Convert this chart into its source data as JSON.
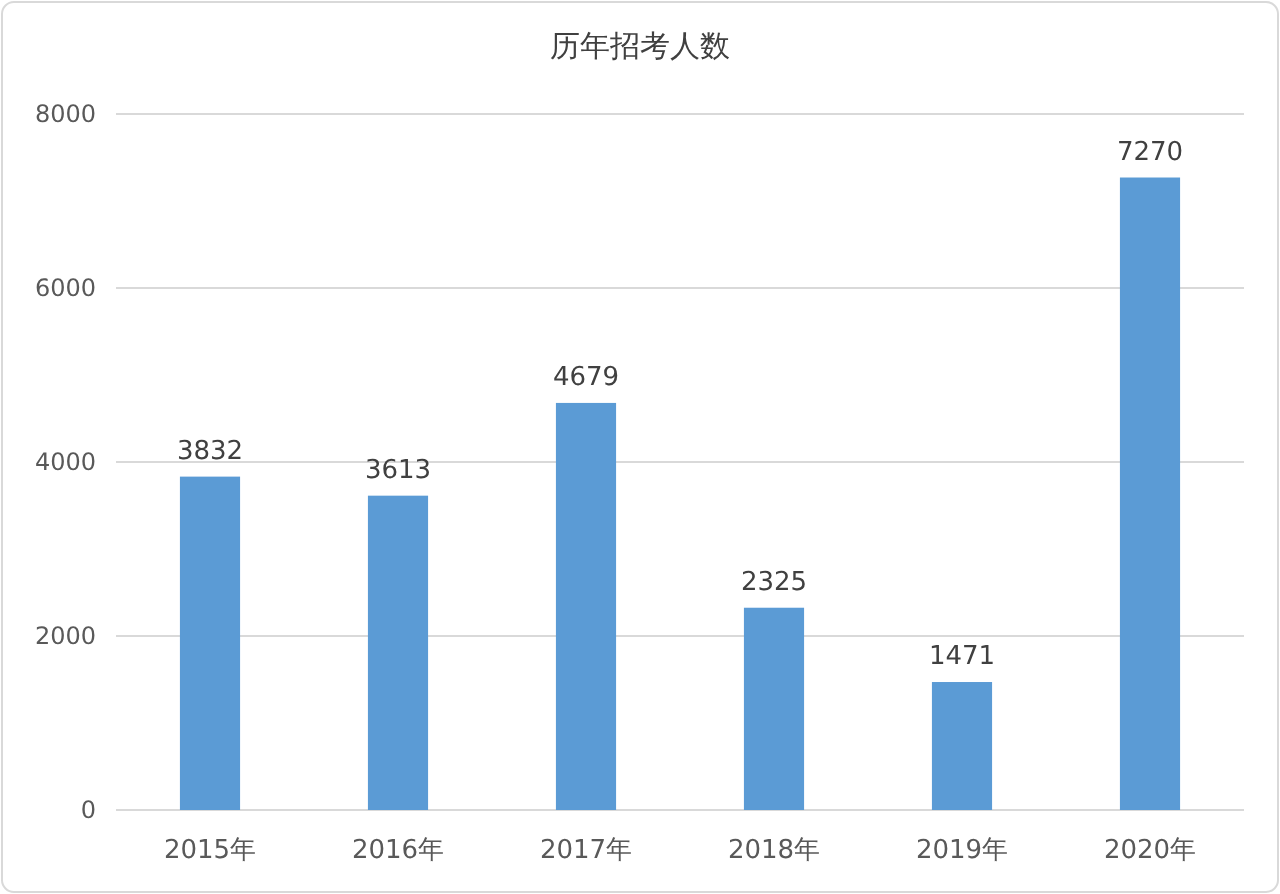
{
  "chart_data": {
    "type": "bar",
    "title": "历年招考人数",
    "categories": [
      "2015年",
      "2016年",
      "2017年",
      "2018年",
      "2019年",
      "2020年"
    ],
    "values": [
      3832,
      3613,
      4679,
      2325,
      1471,
      7270
    ],
    "color": "#5b9bd5",
    "ylim": [
      0,
      8000
    ],
    "yticks": [
      0,
      2000,
      4000,
      6000,
      8000
    ],
    "grid": "y",
    "data_labels": true
  }
}
